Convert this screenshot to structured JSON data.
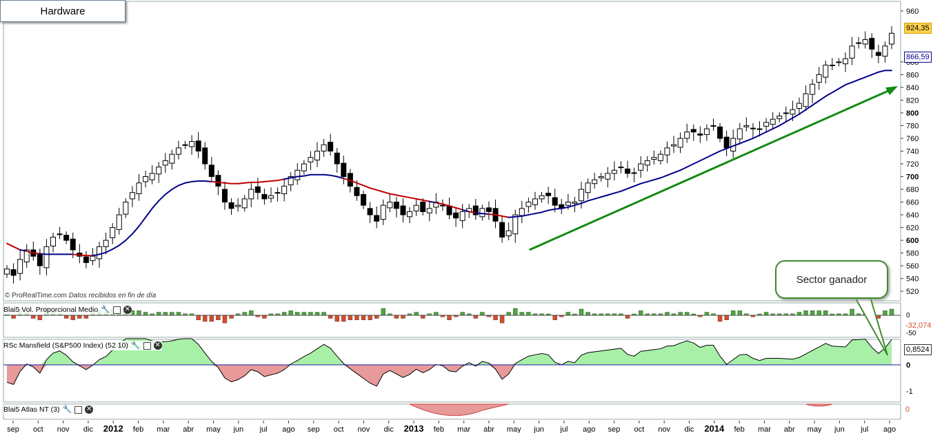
{
  "title": "Hardware",
  "credit": {
    "site": "© ProRealTime.com",
    "note": "Datos recibidos en fin de día"
  },
  "callout": "Sector ganador",
  "price_axis": {
    "ticks": [
      "520",
      "540",
      "560",
      "580",
      "600",
      "620",
      "640",
      "660",
      "680",
      "700",
      "720",
      "740",
      "760",
      "780",
      "800",
      "820",
      "840",
      "860",
      "880",
      "960"
    ],
    "last_price": "924,35",
    "ma_value": "866,59"
  },
  "time_axis": {
    "labels": [
      "sep",
      "oct",
      "nov",
      "dic",
      "2012",
      "feb",
      "mar",
      "abr",
      "may",
      "jun",
      "jul",
      "ago",
      "sep",
      "oct",
      "nov",
      "dic",
      "2013",
      "feb",
      "mar",
      "abr",
      "may",
      "jun",
      "jul",
      "ago",
      "sep",
      "oct",
      "nov",
      "dic",
      "2014",
      "feb",
      "mar",
      "abr",
      "may",
      "jun",
      "jul",
      "ago"
    ],
    "bold": [
      "2012",
      "2013",
      "2014"
    ]
  },
  "panels": {
    "volume": {
      "label": "Blai5 Vol. Proporcional Medio",
      "value": "-32,074",
      "ticks": [
        "0",
        "-50"
      ]
    },
    "mansfield": {
      "label": "RSc Mansfield (S&P500 Index) (52 10)",
      "value": "0,8524",
      "ticks": [
        "0",
        "-1"
      ]
    },
    "atlas": {
      "label": "Blai5 Atlas NT (3)",
      "value": "0"
    }
  },
  "colors": {
    "ma_below": "#c00000",
    "ma_above": "#00008b",
    "trend": "#138a13",
    "vol_pos": "#4ca83a",
    "vol_neg": "#d84b2a",
    "rs_pos": "#a8f0a8",
    "rs_neg": "#e89a9a"
  },
  "chart_data": {
    "type": "candlestick",
    "frequency": "weekly",
    "x_range": [
      "2011-09",
      "2014-08"
    ],
    "ylim": [
      505,
      975
    ],
    "close": [
      555,
      545,
      570,
      585,
      575,
      560,
      590,
      605,
      610,
      600,
      585,
      575,
      565,
      575,
      590,
      600,
      620,
      640,
      660,
      675,
      690,
      700,
      705,
      715,
      725,
      735,
      745,
      750,
      755,
      740,
      720,
      700,
      685,
      660,
      650,
      655,
      665,
      680,
      675,
      665,
      670,
      675,
      685,
      700,
      710,
      720,
      730,
      740,
      750,
      740,
      720,
      700,
      685,
      670,
      655,
      640,
      630,
      655,
      660,
      650,
      640,
      645,
      655,
      645,
      650,
      660,
      655,
      640,
      635,
      645,
      650,
      640,
      650,
      645,
      630,
      605,
      615,
      640,
      650,
      660,
      665,
      670,
      670,
      655,
      650,
      660,
      660,
      680,
      690,
      695,
      700,
      705,
      710,
      715,
      705,
      705,
      720,
      725,
      730,
      735,
      745,
      750,
      760,
      770,
      770,
      765,
      775,
      780,
      760,
      745,
      760,
      775,
      780,
      775,
      775,
      785,
      790,
      795,
      800,
      805,
      815,
      830,
      845,
      860,
      875,
      875,
      880,
      885,
      905,
      910,
      915,
      900,
      890,
      905,
      925
    ],
    "moving_average": {
      "period_weeks": 30,
      "values": [
        595,
        590,
        585,
        583,
        580,
        579,
        578,
        578,
        578,
        578,
        578,
        577,
        576,
        576,
        578,
        581,
        586,
        592,
        600,
        610,
        622,
        636,
        650,
        662,
        672,
        680,
        686,
        690,
        692,
        693,
        693,
        692,
        691,
        690,
        689,
        689,
        690,
        691,
        691,
        692,
        693,
        694,
        696,
        698,
        700,
        701,
        703,
        703,
        703,
        702,
        700,
        697,
        694,
        690,
        686,
        682,
        679,
        676,
        673,
        671,
        669,
        667,
        665,
        663,
        661,
        659,
        657,
        654,
        651,
        648,
        645,
        643,
        642,
        641,
        640,
        638,
        636,
        637,
        638,
        640,
        642,
        644,
        647,
        649,
        650,
        652,
        655,
        658,
        662,
        665,
        668,
        671,
        674,
        677,
        681,
        685,
        689,
        692,
        695,
        698,
        702,
        706,
        710,
        715,
        720,
        725,
        730,
        735,
        740,
        744,
        748,
        752,
        756,
        760,
        765,
        770,
        775,
        780,
        786,
        792,
        798,
        805,
        812,
        819,
        826,
        832,
        838,
        844,
        848,
        852,
        856,
        860,
        864,
        866.59,
        866.59
      ],
      "color_rule": "red while price is below the average, blue while above"
    },
    "annotations": [
      "green upward trend arrow from abr 2013 lows toward ago 2014"
    ],
    "last_price": 924.35,
    "last_ma": 866.59
  }
}
